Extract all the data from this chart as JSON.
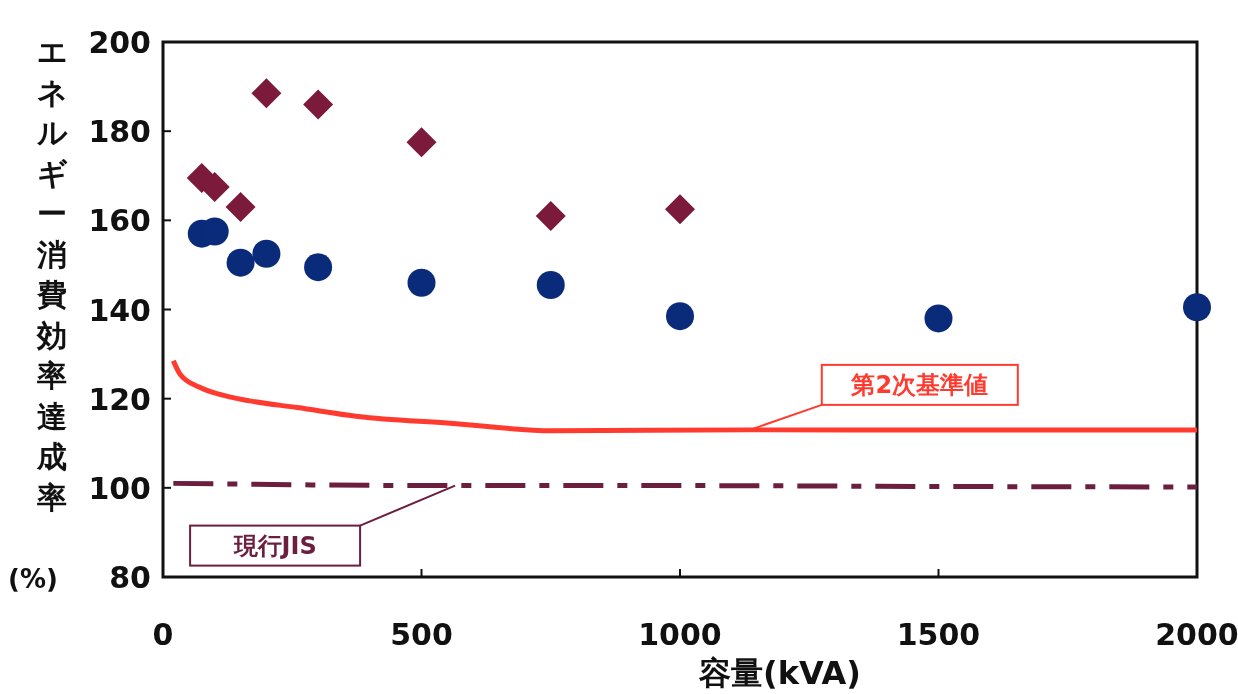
{
  "chart_data": {
    "type": "scatter",
    "xlabel": "容量(kVA)",
    "ylabel": "エネルギー消費効率達成率(%)",
    "xlim": [
      0,
      2000
    ],
    "xticks": [
      0,
      500,
      1000,
      1500,
      2000
    ],
    "ylim": [
      80,
      200
    ],
    "yticks": [
      80,
      100,
      120,
      140,
      160,
      180,
      200
    ],
    "grid": false,
    "legend": false,
    "series": [
      {
        "marker": "diamond",
        "color": "#7b1a3a",
        "x": [
          75,
          100,
          150,
          200,
          300,
          500,
          750,
          1000
        ],
        "values": [
          169.5,
          167.5,
          163,
          188.5,
          186,
          177.5,
          161,
          162.5
        ]
      },
      {
        "marker": "circle",
        "color": "#0a2a7a",
        "x": [
          75,
          100,
          150,
          200,
          300,
          500,
          750,
          1000,
          1500,
          2000
        ],
        "values": [
          157,
          157.5,
          150.5,
          152.5,
          149.5,
          146,
          145.5,
          138.5,
          138,
          140.5
        ]
      },
      {
        "type": "line",
        "name": "第2次基準値",
        "marker": "none",
        "line_style": "solid",
        "color": "#ff3b30",
        "x": [
          20,
          33,
          72,
          108,
          168,
          260,
          377,
          555,
          754,
          1135,
          1500,
          2000
        ],
        "values": [
          128.5,
          125.5,
          122.5,
          121,
          119.5,
          118,
          116,
          114.5,
          112.8,
          113,
          113,
          113
        ]
      },
      {
        "type": "line",
        "name": "現行JIS",
        "marker": "none",
        "line_style": "dashed",
        "color": "#6b1e3e",
        "x": [
          20,
          565,
          1000,
          1500,
          2000
        ],
        "values": [
          101,
          100.5,
          100.5,
          100.3,
          100.2
        ]
      }
    ]
  }
}
